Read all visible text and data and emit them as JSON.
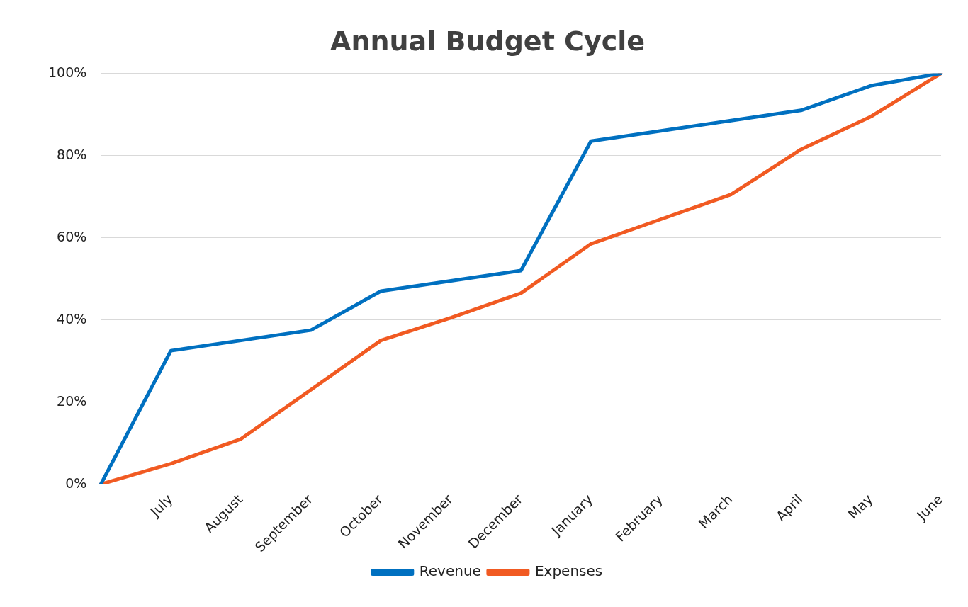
{
  "chart_data": {
    "type": "line",
    "title": "Annual Budget Cycle",
    "categories": [
      null,
      "July",
      "August",
      "September",
      "October",
      "November",
      "December",
      "January",
      "February",
      "March",
      "April",
      "May",
      "June"
    ],
    "series": [
      {
        "name": "Revenue",
        "color": "#0070c0",
        "values": [
          0,
          32.5,
          35,
          37.5,
          47,
          49.5,
          52,
          83.5,
          86,
          88.5,
          91,
          97,
          100
        ]
      },
      {
        "name": "Expenses",
        "color": "#f15a22",
        "values": [
          0,
          5,
          11,
          23,
          35,
          40.5,
          46.5,
          58.5,
          64.5,
          70.5,
          81.5,
          89.5,
          100
        ]
      }
    ],
    "ylim": [
      0,
      100
    ],
    "yticks": [
      {
        "value": 0,
        "label": "0%"
      },
      {
        "value": 20,
        "label": "20%"
      },
      {
        "value": 40,
        "label": "40%"
      },
      {
        "value": 60,
        "label": "60%"
      },
      {
        "value": 80,
        "label": "80%"
      },
      {
        "value": 100,
        "label": "100%"
      }
    ],
    "grid": "y",
    "legend": "bottom",
    "marker": "none",
    "line_style": "solid"
  }
}
